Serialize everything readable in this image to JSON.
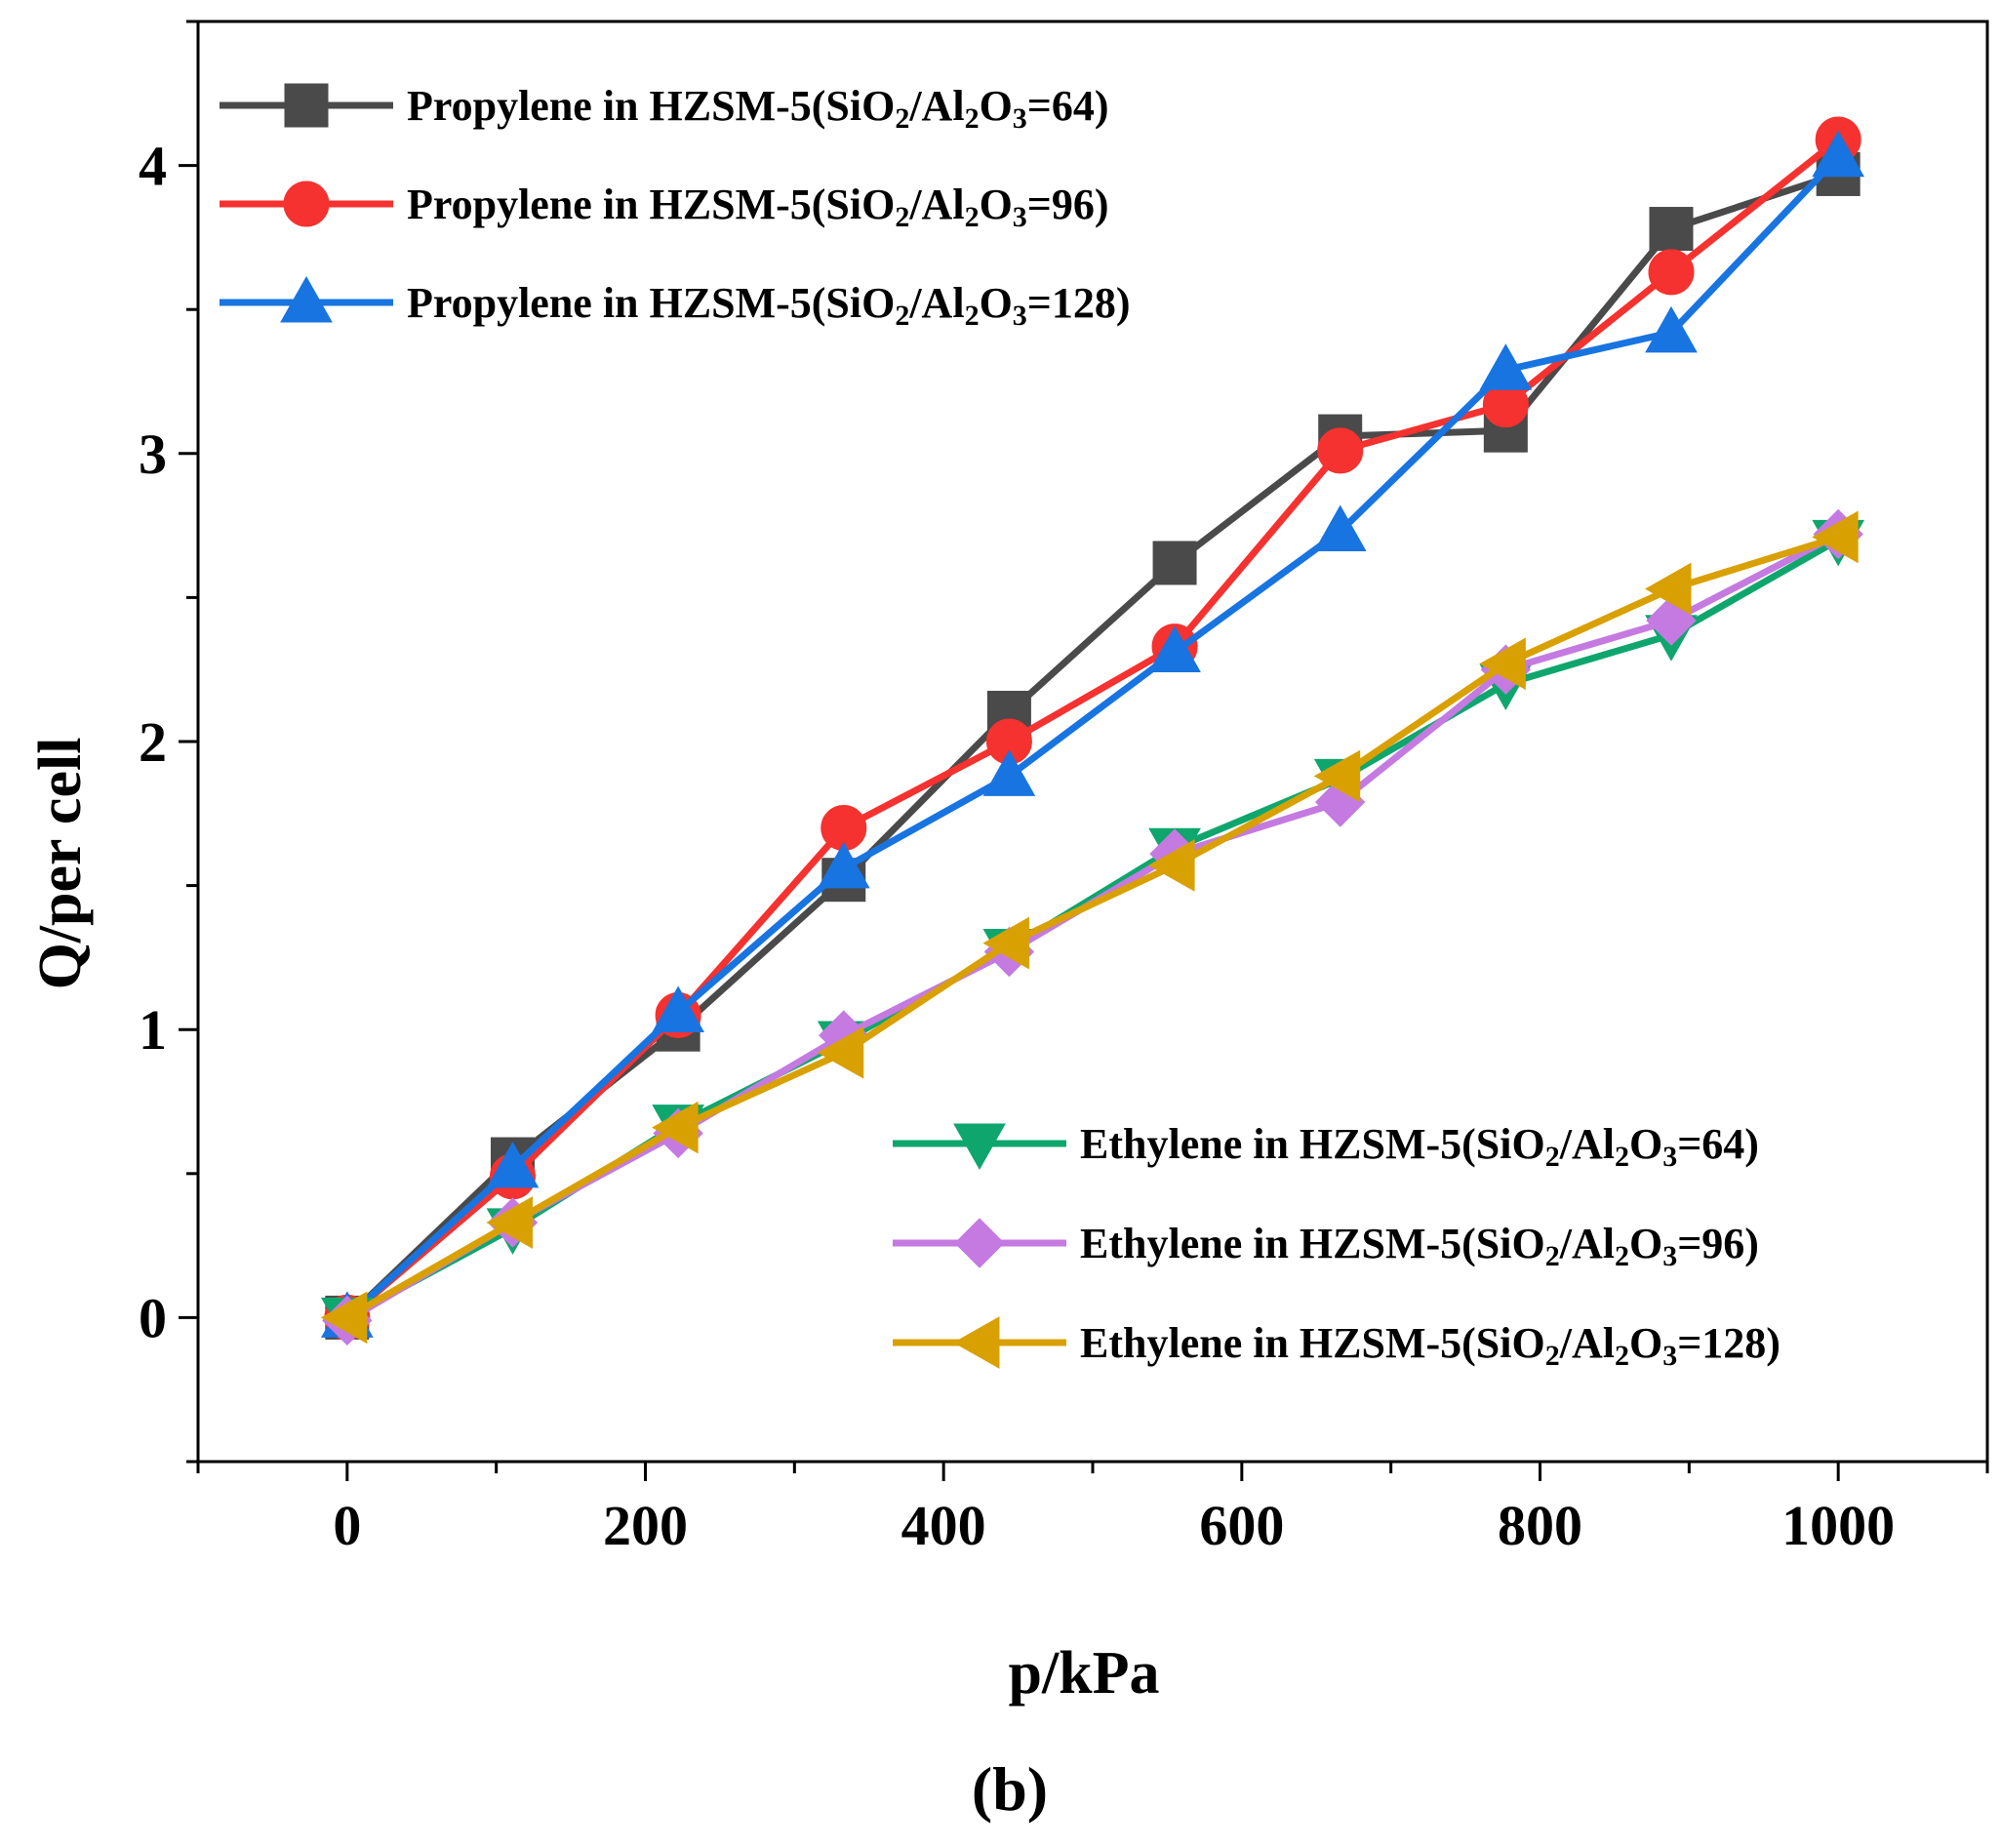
{
  "chart_data": {
    "type": "line",
    "xlabel": "p/kPa",
    "ylabel": "Q/per cell",
    "caption": "(b)",
    "xlim": [
      -100,
      1100
    ],
    "ylim": [
      -0.5,
      4.5
    ],
    "x_ticks": [
      "0",
      "200",
      "400",
      "600",
      "800",
      "1000"
    ],
    "y_ticks": [
      "0",
      "1",
      "2",
      "3",
      "4"
    ],
    "x": [
      0,
      111,
      222,
      333,
      444,
      555,
      666,
      777,
      888,
      1000
    ],
    "legend_1": "top-left",
    "legend_2": "bottom-right",
    "series": [
      {
        "name": "Propylene in HZSM-5(SiO2/Al2O3=64)",
        "marker": "square",
        "color": "#4a4a4a",
        "values": [
          0.0,
          0.55,
          1.0,
          1.52,
          2.1,
          2.62,
          3.06,
          3.08,
          3.78,
          3.97
        ]
      },
      {
        "name": "Propylene in HZSM-5(SiO2/Al2O3=96)",
        "marker": "circle",
        "color": "#f5322f",
        "values": [
          0.0,
          0.49,
          1.05,
          1.7,
          2.0,
          2.33,
          3.01,
          3.17,
          3.63,
          4.09
        ]
      },
      {
        "name": "Propylene in HZSM-5(SiO2/Al2O3=128)",
        "marker": "triangle-up",
        "color": "#1874e0",
        "values": [
          0.0,
          0.52,
          1.06,
          1.56,
          1.88,
          2.31,
          2.73,
          3.29,
          3.42,
          4.03
        ]
      },
      {
        "name": "Ethylene in HZSM-5(SiO2/Al2O3=64)",
        "marker": "triangle-down",
        "color": "#0fa66e",
        "values": [
          0.0,
          0.31,
          0.67,
          0.96,
          1.28,
          1.63,
          1.87,
          2.2,
          2.37,
          2.7
        ]
      },
      {
        "name": "Ethylene in HZSM-5(SiO2/Al2O3=96)",
        "marker": "diamond",
        "color": "#c47ae0",
        "values": [
          -0.01,
          0.33,
          0.64,
          0.98,
          1.27,
          1.61,
          1.79,
          2.25,
          2.42,
          2.72
        ]
      },
      {
        "name": "Ethylene in HZSM-5(SiO2/Al2O3=128)",
        "marker": "triangle-left",
        "color": "#d9a002",
        "values": [
          0.0,
          0.33,
          0.66,
          0.92,
          1.3,
          1.57,
          1.88,
          2.27,
          2.53,
          2.71
        ]
      }
    ],
    "legend_labels": [
      {
        "pre": "Propylene in HZSM-5(SiO",
        "a": "2",
        "mid": "/Al",
        "b": "2",
        "c": "O",
        "d": "3",
        "post": "=64)"
      },
      {
        "pre": "Propylene in HZSM-5(SiO",
        "a": "2",
        "mid": "/Al",
        "b": "2",
        "c": "O",
        "d": "3",
        "post": "=96)"
      },
      {
        "pre": "Propylene in HZSM-5(SiO",
        "a": "2",
        "mid": "/Al",
        "b": "2",
        "c": "O",
        "d": "3",
        "post": "=128)"
      },
      {
        "pre": "Ethylene in HZSM-5(SiO",
        "a": "2",
        "mid": "/Al",
        "b": "2",
        "c": "O",
        "d": "3",
        "post": "=64)"
      },
      {
        "pre": "Ethylene in HZSM-5(SiO",
        "a": "2",
        "mid": "/Al",
        "b": "2",
        "c": "O",
        "d": "3",
        "post": "=96)"
      },
      {
        "pre": "Ethylene in HZSM-5(SiO",
        "a": "2",
        "mid": "/Al",
        "b": "2",
        "c": "O",
        "d": "3",
        "post": "=128)"
      }
    ]
  }
}
